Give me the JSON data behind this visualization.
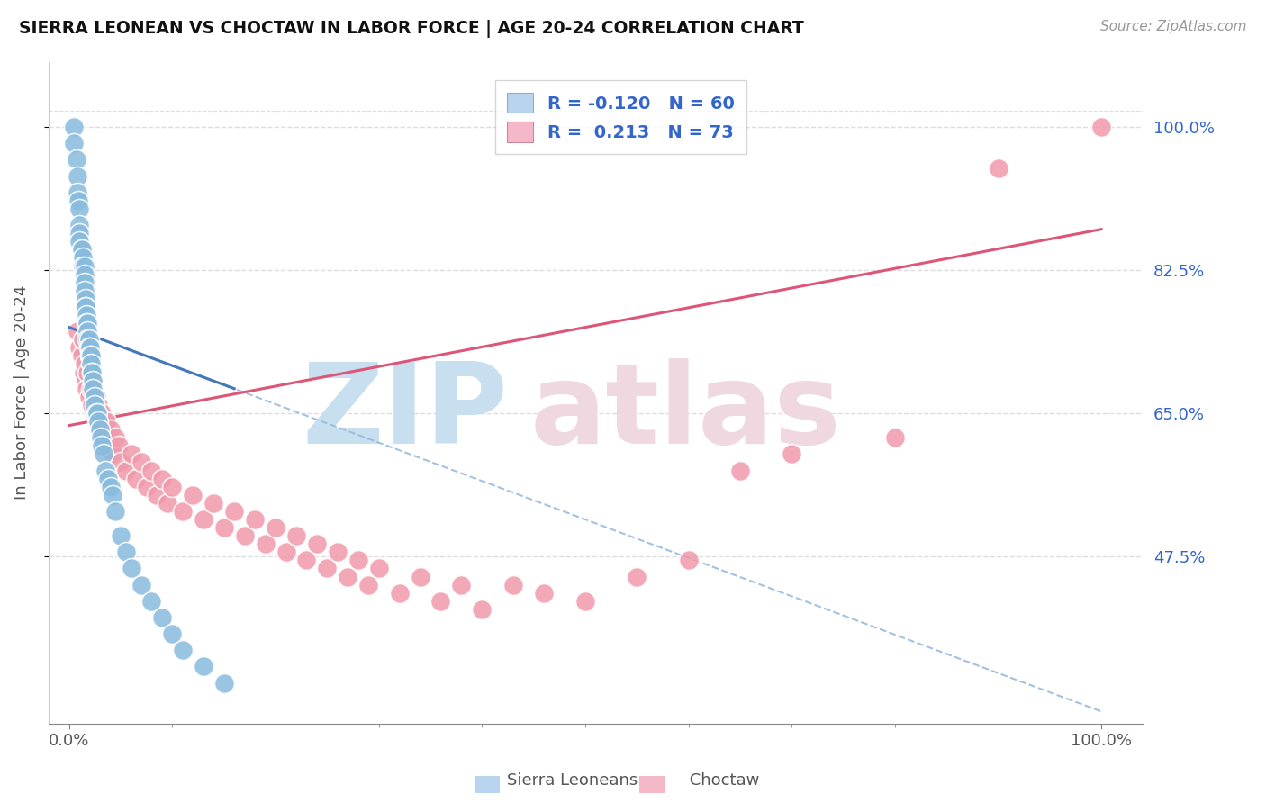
{
  "title": "SIERRA LEONEAN VS CHOCTAW IN LABOR FORCE | AGE 20-24 CORRELATION CHART",
  "source": "Source: ZipAtlas.com",
  "ylabel": "In Labor Force | Age 20-24",
  "ytick_vals": [
    0.475,
    0.65,
    0.825,
    1.0
  ],
  "ytick_labels": [
    "47.5%",
    "65.0%",
    "82.5%",
    "100.0%"
  ],
  "xlim": [
    -0.02,
    1.04
  ],
  "ylim": [
    0.27,
    1.08
  ],
  "blue_R": -0.12,
  "blue_N": 60,
  "pink_R": 0.213,
  "pink_N": 73,
  "blue_color": "#88bbdd",
  "pink_color": "#f099aa",
  "blue_line_color": "#4477bb",
  "pink_line_color": "#dd5577",
  "dashed_line_color": "#99bbdd",
  "grid_color": "#dddddd",
  "text_color": "#555555",
  "title_color": "#111111",
  "source_color": "#999999",
  "label_color": "#3366cc",
  "watermark_zip_color": "#c8dff0",
  "watermark_atlas_color": "#f0d8e0",
  "blue_x": [
    0.005,
    0.005,
    0.007,
    0.008,
    0.008,
    0.009,
    0.01,
    0.01,
    0.01,
    0.01,
    0.012,
    0.012,
    0.013,
    0.013,
    0.015,
    0.015,
    0.015,
    0.015,
    0.016,
    0.016,
    0.016,
    0.017,
    0.017,
    0.018,
    0.018,
    0.018,
    0.019,
    0.019,
    0.02,
    0.02,
    0.021,
    0.021,
    0.022,
    0.022,
    0.023,
    0.023,
    0.025,
    0.025,
    0.026,
    0.027,
    0.028,
    0.03,
    0.031,
    0.032,
    0.033,
    0.035,
    0.038,
    0.04,
    0.042,
    0.045,
    0.05,
    0.055,
    0.06,
    0.07,
    0.08,
    0.09,
    0.1,
    0.11,
    0.13,
    0.15
  ],
  "blue_y": [
    1.0,
    0.98,
    0.96,
    0.94,
    0.92,
    0.91,
    0.9,
    0.88,
    0.87,
    0.86,
    0.85,
    0.85,
    0.84,
    0.83,
    0.83,
    0.82,
    0.81,
    0.8,
    0.79,
    0.78,
    0.78,
    0.77,
    0.76,
    0.76,
    0.75,
    0.74,
    0.74,
    0.73,
    0.73,
    0.72,
    0.72,
    0.71,
    0.7,
    0.7,
    0.69,
    0.68,
    0.67,
    0.66,
    0.65,
    0.65,
    0.64,
    0.63,
    0.62,
    0.61,
    0.6,
    0.58,
    0.57,
    0.56,
    0.55,
    0.53,
    0.5,
    0.48,
    0.46,
    0.44,
    0.42,
    0.4,
    0.38,
    0.36,
    0.34,
    0.32
  ],
  "pink_x": [
    0.008,
    0.01,
    0.012,
    0.013,
    0.014,
    0.015,
    0.016,
    0.017,
    0.018,
    0.019,
    0.02,
    0.021,
    0.022,
    0.023,
    0.025,
    0.026,
    0.027,
    0.028,
    0.03,
    0.032,
    0.034,
    0.036,
    0.038,
    0.04,
    0.042,
    0.045,
    0.048,
    0.05,
    0.055,
    0.06,
    0.065,
    0.07,
    0.075,
    0.08,
    0.085,
    0.09,
    0.095,
    0.1,
    0.11,
    0.12,
    0.13,
    0.14,
    0.15,
    0.16,
    0.17,
    0.18,
    0.19,
    0.2,
    0.21,
    0.22,
    0.23,
    0.24,
    0.25,
    0.26,
    0.27,
    0.28,
    0.29,
    0.3,
    0.32,
    0.34,
    0.36,
    0.38,
    0.4,
    0.43,
    0.46,
    0.5,
    0.55,
    0.6,
    0.65,
    0.7,
    0.8,
    0.9,
    1.0
  ],
  "pink_y": [
    0.75,
    0.73,
    0.72,
    0.74,
    0.7,
    0.71,
    0.69,
    0.68,
    0.7,
    0.67,
    0.72,
    0.68,
    0.66,
    0.69,
    0.65,
    0.67,
    0.64,
    0.66,
    0.63,
    0.65,
    0.62,
    0.64,
    0.61,
    0.63,
    0.6,
    0.62,
    0.61,
    0.59,
    0.58,
    0.6,
    0.57,
    0.59,
    0.56,
    0.58,
    0.55,
    0.57,
    0.54,
    0.56,
    0.53,
    0.55,
    0.52,
    0.54,
    0.51,
    0.53,
    0.5,
    0.52,
    0.49,
    0.51,
    0.48,
    0.5,
    0.47,
    0.49,
    0.46,
    0.48,
    0.45,
    0.47,
    0.44,
    0.46,
    0.43,
    0.45,
    0.42,
    0.44,
    0.41,
    0.44,
    0.43,
    0.42,
    0.45,
    0.47,
    0.58,
    0.6,
    0.62,
    0.95,
    1.0
  ],
  "blue_line_x0": 0.0,
  "blue_line_y0": 0.755,
  "blue_line_x1": 0.16,
  "blue_line_y1": 0.68,
  "pink_line_x0": 0.0,
  "pink_line_y0": 0.635,
  "pink_line_x1": 1.0,
  "pink_line_y1": 0.875,
  "dash_line_x0": 0.0,
  "dash_line_y0": 0.755,
  "dash_line_x1": 1.0,
  "dash_line_y1": 0.285
}
